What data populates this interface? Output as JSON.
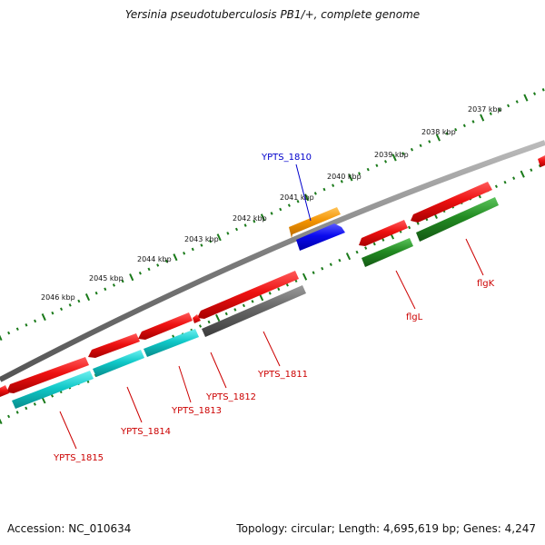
{
  "title": "Yersinia pseudotuberculosis PB1/+, complete genome",
  "footer": {
    "accession": "Accession: NC_010634",
    "summary": "Topology: circular; Length: 4,695,619 bp; Genes: 4,247"
  },
  "colors": {
    "backbone": "#7a7a7a",
    "scale_ticks": "#1a7a1a",
    "red_gene": "#ee1111",
    "cyan_gene": "#10c8c8",
    "grey_gene": "#666666",
    "green_gene": "#228b22",
    "orange_gene": "#f39300",
    "blue_gene": "#0a0aee",
    "red_label": "#cc0000",
    "blue_label": "#0000cc"
  },
  "scale": {
    "unit": "kbp",
    "ticks": [
      {
        "label": "2037 kbp"
      },
      {
        "label": "2038 kbp"
      },
      {
        "label": "2039 kbp"
      },
      {
        "label": "2040 kbp"
      },
      {
        "label": "2041 kbp"
      },
      {
        "label": "2042 kbp"
      },
      {
        "label": "2043 kbp"
      },
      {
        "label": "2044 kbp"
      },
      {
        "label": "2045 kbp"
      },
      {
        "label": "2046 kbp"
      }
    ]
  },
  "genes": [
    {
      "label": "flgK",
      "color_key": "red_label"
    },
    {
      "label": "flgL",
      "color_key": "red_label"
    },
    {
      "label": "YPTS_1810",
      "color_key": "blue_label"
    },
    {
      "label": "YPTS_1811",
      "color_key": "red_label"
    },
    {
      "label": "YPTS_1812",
      "color_key": "red_label"
    },
    {
      "label": "YPTS_1813",
      "color_key": "red_label"
    },
    {
      "label": "YPTS_1814",
      "color_key": "red_label"
    },
    {
      "label": "YPTS_1815",
      "color_key": "red_label"
    }
  ]
}
